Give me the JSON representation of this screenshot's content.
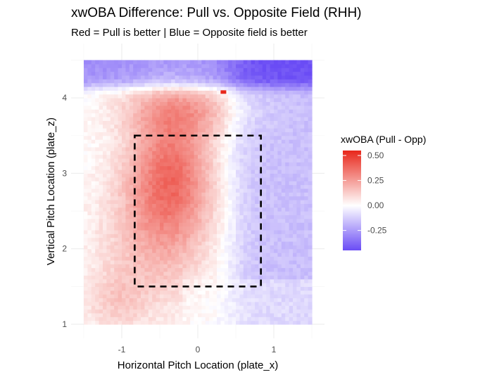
{
  "chart_data": {
    "type": "heatmap",
    "title": "xwOBA Difference: Pull vs. Opposite Field (RHH)",
    "subtitle": "Red = Pull is better | Blue = Opposite field is better",
    "xlabel": "Horizontal Pitch Location (plate_x)",
    "ylabel": "Vertical Pitch Location (plate_z)",
    "xlim": [
      -1.5,
      1.5
    ],
    "ylim": [
      1.0,
      4.5
    ],
    "x_ticks": [
      -1,
      0,
      1
    ],
    "y_ticks": [
      1,
      2,
      3,
      4
    ],
    "x_tick_labels": [
      "-1",
      "0",
      "1"
    ],
    "y_tick_labels": [
      "1",
      "2",
      "3",
      "4"
    ],
    "strike_zone": {
      "x_min": -0.83,
      "x_max": 0.83,
      "z_min": 1.5,
      "z_max": 3.5,
      "style": "dashed"
    },
    "legend": {
      "title": "xwOBA (Pull - Opp)",
      "placement": "right",
      "range": [
        -0.45,
        0.55
      ],
      "ticks": [
        0.5,
        0.25,
        0.0,
        -0.25
      ],
      "tick_labels": [
        "0.50",
        "0.25",
        "0.00",
        "-0.25"
      ],
      "colors": {
        "low": "#6a4cf5",
        "mid": "#ffffff",
        "high": "#e8271b"
      }
    },
    "cell_size": 0.05,
    "description_of_values": "Estimated xwOBA difference over plate_x/plate_z grid: positive (red) concentrated left-center of zone and upper band, negative (blue) on right side and along top edge.",
    "summary_values": {
      "max_estimate": 0.55,
      "min_estimate": -0.45,
      "left_center_peak": 0.3,
      "right_side_typical": -0.1,
      "top_band": -0.15
    }
  }
}
